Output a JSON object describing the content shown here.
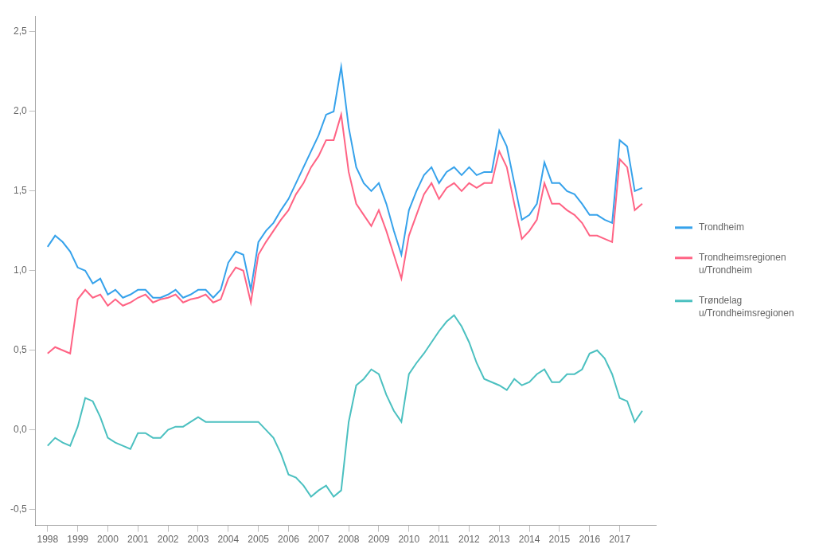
{
  "chart_data": {
    "type": "line",
    "x": [
      1998,
      1998.25,
      1998.5,
      1998.75,
      1999,
      1999.25,
      1999.5,
      1999.75,
      2000,
      2000.25,
      2000.5,
      2000.75,
      2001,
      2001.25,
      2001.5,
      2001.75,
      2002,
      2002.25,
      2002.5,
      2002.75,
      2003,
      2003.25,
      2003.5,
      2003.75,
      2004,
      2004.25,
      2004.5,
      2004.75,
      2005,
      2005.25,
      2005.5,
      2005.75,
      2006,
      2006.25,
      2006.5,
      2006.75,
      2007,
      2007.25,
      2007.5,
      2007.75,
      2008,
      2008.25,
      2008.5,
      2008.75,
      2009,
      2009.25,
      2009.5,
      2009.75,
      2010,
      2010.25,
      2010.5,
      2010.75,
      2011,
      2011.25,
      2011.5,
      2011.75,
      2012,
      2012.25,
      2012.5,
      2012.75,
      2013,
      2013.25,
      2013.5,
      2013.75,
      2014,
      2014.25,
      2014.5,
      2014.75,
      2015,
      2015.25,
      2015.5,
      2015.75,
      2016,
      2016.25,
      2016.5,
      2016.75,
      2017,
      2017.25,
      2017.5,
      2017.75
    ],
    "series": [
      {
        "name": "Trondheim",
        "values": [
          1.15,
          1.22,
          1.18,
          1.12,
          1.02,
          1.0,
          0.92,
          0.95,
          0.85,
          0.88,
          0.83,
          0.85,
          0.88,
          0.88,
          0.83,
          0.83,
          0.85,
          0.88,
          0.83,
          0.85,
          0.88,
          0.88,
          0.83,
          0.88,
          1.05,
          1.12,
          1.1,
          0.88,
          1.18,
          1.25,
          1.3,
          1.38,
          1.45,
          1.55,
          1.65,
          1.75,
          1.85,
          1.98,
          2.0,
          2.28,
          1.9,
          1.65,
          1.55,
          1.5,
          1.55,
          1.42,
          1.25,
          1.1,
          1.38,
          1.5,
          1.6,
          1.65,
          1.55,
          1.62,
          1.65,
          1.6,
          1.65,
          1.6,
          1.62,
          1.62,
          1.88,
          1.78,
          1.55,
          1.32,
          1.35,
          1.42,
          1.68,
          1.55,
          1.55,
          1.5,
          1.48,
          1.42,
          1.35,
          1.35,
          1.32,
          1.3,
          1.82,
          1.78,
          1.5,
          1.52
        ]
      },
      {
        "name": "Trondheimsregionen\nu/Trondheim",
        "values": [
          0.48,
          0.52,
          0.5,
          0.48,
          0.82,
          0.88,
          0.83,
          0.85,
          0.78,
          0.82,
          0.78,
          0.8,
          0.83,
          0.85,
          0.8,
          0.82,
          0.83,
          0.85,
          0.8,
          0.82,
          0.83,
          0.85,
          0.8,
          0.82,
          0.95,
          1.02,
          1.0,
          0.8,
          1.1,
          1.18,
          1.25,
          1.32,
          1.38,
          1.48,
          1.55,
          1.65,
          1.72,
          1.82,
          1.82,
          1.98,
          1.62,
          1.42,
          1.35,
          1.28,
          1.38,
          1.25,
          1.1,
          0.95,
          1.22,
          1.35,
          1.48,
          1.55,
          1.45,
          1.52,
          1.55,
          1.5,
          1.55,
          1.52,
          1.55,
          1.55,
          1.75,
          1.65,
          1.42,
          1.2,
          1.25,
          1.32,
          1.55,
          1.42,
          1.42,
          1.38,
          1.35,
          1.3,
          1.22,
          1.22,
          1.2,
          1.18,
          1.7,
          1.65,
          1.38,
          1.42
        ]
      },
      {
        "name": "Trøndelag\nu/Trondheimsregionen",
        "values": [
          -0.1,
          -0.05,
          -0.08,
          -0.1,
          0.02,
          0.2,
          0.18,
          0.08,
          -0.05,
          -0.08,
          -0.1,
          -0.12,
          -0.02,
          -0.02,
          -0.05,
          -0.05,
          0.0,
          0.02,
          0.02,
          0.05,
          0.08,
          0.05,
          0.05,
          0.05,
          0.05,
          0.05,
          0.05,
          0.05,
          0.05,
          0.0,
          -0.05,
          -0.15,
          -0.28,
          -0.3,
          -0.35,
          -0.42,
          -0.38,
          -0.35,
          -0.42,
          -0.38,
          0.05,
          0.28,
          0.32,
          0.38,
          0.35,
          0.22,
          0.12,
          0.05,
          0.35,
          0.42,
          0.48,
          0.55,
          0.62,
          0.68,
          0.72,
          0.65,
          0.55,
          0.42,
          0.32,
          0.3,
          0.28,
          0.25,
          0.32,
          0.28,
          0.3,
          0.35,
          0.38,
          0.3,
          0.3,
          0.35,
          0.35,
          0.38,
          0.48,
          0.5,
          0.45,
          0.35,
          0.2,
          0.18,
          0.05,
          0.12
        ]
      }
    ],
    "xlim": [
      1997.6,
      2018.2
    ],
    "xticks": [
      1998,
      1999,
      2000,
      2001,
      2002,
      2003,
      2004,
      2005,
      2006,
      2007,
      2008,
      2009,
      2010,
      2011,
      2012,
      2013,
      2014,
      2015,
      2016,
      2017
    ],
    "ylim": [
      -0.6,
      2.6
    ],
    "yticks": [
      {
        "value": -0.5,
        "label": "-0,5"
      },
      {
        "value": 0.0,
        "label": "0,0"
      },
      {
        "value": 0.5,
        "label": "0,5"
      },
      {
        "value": 1.0,
        "label": "1,0"
      },
      {
        "value": 1.5,
        "label": "1,5"
      },
      {
        "value": 2.0,
        "label": "2,0"
      },
      {
        "value": 2.5,
        "label": "2,5"
      }
    ],
    "grid": false,
    "legend": "right"
  }
}
